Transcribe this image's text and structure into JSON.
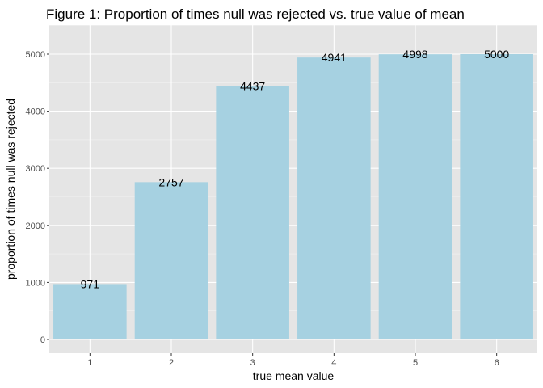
{
  "chart_data": {
    "type": "bar",
    "title": "Figure 1: Proportion of times null was rejected vs. true value of mean",
    "xlabel": "true mean value",
    "ylabel": "proportion of times null was rejected",
    "categories": [
      "1",
      "2",
      "3",
      "4",
      "5",
      "6"
    ],
    "values": [
      971,
      2757,
      4437,
      4941,
      4998,
      5000
    ],
    "data_labels": [
      "971",
      "2757",
      "4437",
      "4941",
      "4998",
      "5000"
    ],
    "ylim": [
      0,
      5400
    ],
    "yticks": [
      0,
      1000,
      2000,
      3000,
      4000,
      5000
    ],
    "ytick_labels": [
      "0",
      "1000",
      "2000",
      "3000",
      "4000",
      "5000"
    ],
    "grid": true,
    "legend": "none",
    "colors": {
      "bar": "#a6d1e1",
      "panel": "#e5e5e5",
      "grid_major": "#ffffff",
      "grid_minor": "#f2f2f2",
      "tick": "#333333"
    }
  }
}
